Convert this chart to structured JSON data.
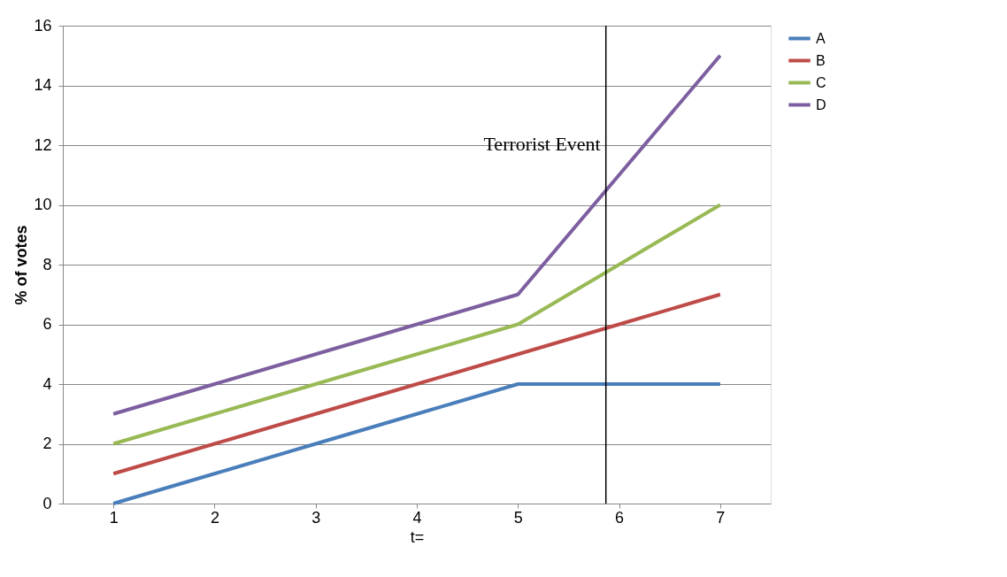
{
  "chart_data": {
    "type": "line",
    "xlabel": "t=",
    "ylabel": "% of votes",
    "x": [
      1,
      2,
      3,
      4,
      5,
      6,
      7
    ],
    "xlim": [
      0.5,
      7.5
    ],
    "xticks": [
      1,
      2,
      3,
      4,
      5,
      6,
      7
    ],
    "ylim": [
      0,
      16
    ],
    "yticks": [
      0,
      2,
      4,
      6,
      8,
      10,
      12,
      14,
      16
    ],
    "grid": "y",
    "legend": "right",
    "marker": "none",
    "line_style": "solid",
    "series": [
      {
        "name": "A",
        "color": "#4a7ebb",
        "values": [
          0,
          1,
          2,
          3,
          4,
          4,
          4
        ]
      },
      {
        "name": "B",
        "color": "#be4b48",
        "values": [
          1,
          2,
          3,
          4,
          5,
          6,
          7
        ]
      },
      {
        "name": "C",
        "color": "#98b954",
        "values": [
          2,
          3,
          4,
          5,
          6,
          8,
          10
        ]
      },
      {
        "name": "D",
        "color": "#7d5fa0",
        "values": [
          3,
          4,
          5,
          6,
          7,
          11,
          15
        ]
      }
    ],
    "ref_lines": [
      {
        "axis": "x",
        "value": 5.87,
        "label": "Terrorist Event",
        "color": "#000000",
        "line_style": "solid"
      }
    ]
  }
}
